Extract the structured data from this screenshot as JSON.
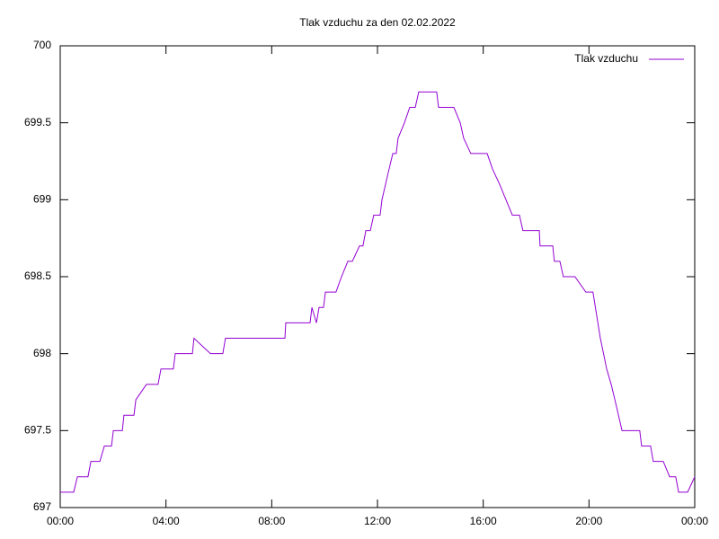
{
  "chart_data": {
    "type": "line",
    "title": "Tlak vzduchu za den 02.02.2022",
    "xlim": [
      0,
      24
    ],
    "xticks": [
      {
        "value": 0,
        "label": "00:00"
      },
      {
        "value": 4,
        "label": "04:00"
      },
      {
        "value": 8,
        "label": "08:00"
      },
      {
        "value": 12,
        "label": "12:00"
      },
      {
        "value": 16,
        "label": "16:00"
      },
      {
        "value": 20,
        "label": "20:00"
      },
      {
        "value": 24,
        "label": "00:00"
      }
    ],
    "ylim": [
      697,
      700
    ],
    "yticks": [
      697,
      697.5,
      698,
      698.5,
      699,
      699.5,
      700
    ],
    "legend": "top-right",
    "x": [
      0,
      0.51,
      0.65,
      1.05,
      1.16,
      1.5,
      1.67,
      1.94,
      2.01,
      2.35,
      2.41,
      2.79,
      2.86,
      3.26,
      3.7,
      3.81,
      4.28,
      4.35,
      5.0,
      5.06,
      5.68,
      6.15,
      6.25,
      8.5,
      8.53,
      9.45,
      9.52,
      9.69,
      9.79,
      9.96,
      10.03,
      10.43,
      10.64,
      10.88,
      11.05,
      11.32,
      11.45,
      11.56,
      11.73,
      11.86,
      12.1,
      12.17,
      12.44,
      12.58,
      12.71,
      12.78,
      13.02,
      13.22,
      13.43,
      13.56,
      14.24,
      14.31,
      14.89,
      15.13,
      15.26,
      15.53,
      16.15,
      16.35,
      16.62,
      16.86,
      17.1,
      17.37,
      17.5,
      18.12,
      18.15,
      18.63,
      18.69,
      18.9,
      19.03,
      19.47,
      19.88,
      20.15,
      20.43,
      20.67,
      20.84,
      20.98,
      21.25,
      21.92,
      21.99,
      22.33,
      22.43,
      22.81,
      23.05,
      23.28,
      23.39,
      23.73,
      24
    ],
    "series": [
      {
        "name": "Tlak vzduchu",
        "color": "#9400d3",
        "values": [
          697.1,
          697.1,
          697.2,
          697.2,
          697.3,
          697.3,
          697.4,
          697.4,
          697.5,
          697.5,
          697.6,
          697.6,
          697.7,
          697.8,
          697.8,
          697.9,
          697.9,
          698.0,
          698.0,
          698.1,
          698.0,
          698.0,
          698.1,
          698.1,
          698.2,
          698.2,
          698.3,
          698.2,
          698.3,
          698.3,
          698.4,
          698.4,
          698.5,
          698.6,
          698.6,
          698.7,
          698.7,
          698.8,
          698.8,
          698.9,
          698.9,
          699.0,
          699.2,
          699.3,
          699.3,
          699.4,
          699.5,
          699.6,
          699.6,
          699.7,
          699.7,
          699.6,
          699.6,
          699.5,
          699.4,
          699.3,
          699.3,
          699.2,
          699.1,
          699.0,
          698.9,
          698.9,
          698.8,
          698.8,
          698.7,
          698.7,
          698.6,
          698.6,
          698.5,
          698.5,
          698.4,
          698.4,
          698.1,
          697.9,
          697.8,
          697.7,
          697.5,
          697.5,
          697.4,
          697.4,
          697.3,
          697.3,
          697.2,
          697.2,
          697.1,
          697.1,
          697.2
        ]
      }
    ]
  }
}
